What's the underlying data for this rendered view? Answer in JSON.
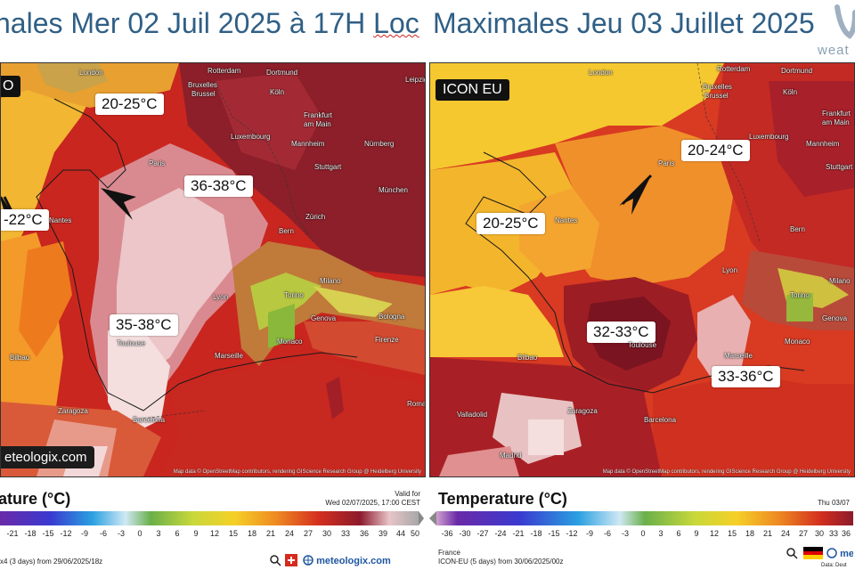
{
  "header": {
    "left_title_a": "nales  Mer 02 Juil 2025 à 17H ",
    "left_title_b": "Loc",
    "right_title": "Maximales Jeu 03 Juillet 2025",
    "logo_text": "weat"
  },
  "left_map": {
    "model_label": "O",
    "watermark": "eteologix.com",
    "credit": "Map data © OpenStreetMap contributors, rendering GIScience Research Group @ Heidelberg University",
    "labels": [
      "20-25°C",
      "36-38°C",
      "-22°C",
      "35-38°C"
    ],
    "cities": [
      "London",
      "Rotterdam",
      "Dortmund",
      "Leipzig",
      "Bruxelles",
      "Brussel",
      "Köln",
      "Frankfurt",
      "am Main",
      "Luxembourg",
      "Mannheim",
      "Nürnberg",
      "Paris",
      "Stuttgart",
      "München",
      "Zürich",
      "Bern",
      "Lyon",
      "Torino",
      "Milano",
      "Genova",
      "Bologna",
      "Monaco",
      "Firenze",
      "Marseille",
      "Toulouse",
      "Bilbao",
      "Zaragoza",
      "Barcelona",
      "Roma",
      "Nantes"
    ]
  },
  "right_map": {
    "model_label": "ICON EU",
    "credit": "Map data © OpenStreetMap contributors, rendering GIScience Research Group @ Heidelberg University",
    "labels": [
      "20-24°C",
      "20-25°C",
      "32-33°C",
      "33-36°C"
    ],
    "cities": [
      "London",
      "Rotterdam",
      "Dortmund",
      "Bruxelles",
      "Brussel",
      "Köln",
      "Frankfurt",
      "am Main",
      "Luxembourg",
      "Mannheim",
      "Paris",
      "Stuttgart",
      "Nantes",
      "Bern",
      "Lyon",
      "Torino",
      "Milano",
      "Genova",
      "Monaco",
      "Marseille",
      "Toulouse",
      "Bilbao",
      "Valladolid",
      "Zaragoza",
      "Barcelona",
      "Madrid"
    ]
  },
  "left_legend": {
    "title": "ature (°C)",
    "valid_label": "Valid for",
    "valid_value": "Wed 02/07/2025, 17:00 CEST",
    "ticks": [
      "-21",
      "-18",
      "-15",
      "-12",
      "-9",
      "-6",
      "-3",
      "0",
      "3",
      "6",
      "9",
      "12",
      "15",
      "18",
      "21",
      "24",
      "27",
      "30",
      "33",
      "36",
      "39",
      "44",
      "50"
    ],
    "run": "x4 (3 days) from 29/06/2025/18z",
    "brand": "meteologix.com"
  },
  "right_legend": {
    "title": "Temperature (°C)",
    "valid_value": "Thu 03/07",
    "ticks": [
      "-36",
      "-30",
      "-27",
      "-24",
      "-21",
      "-18",
      "-15",
      "-12",
      "-9",
      "-6",
      "-3",
      "0",
      "3",
      "6",
      "9",
      "12",
      "15",
      "18",
      "21",
      "24",
      "27",
      "30",
      "33",
      "36"
    ],
    "country": "France",
    "run": "ICON-EU (5 days) from 30/06/2025/00z",
    "brand": "me",
    "data_note": "Data: Deut"
  },
  "colors": {
    "title_blue": "#2f5f86",
    "sea_dark": "#b0201c",
    "hot_pink": "#f0c8c8",
    "yellow": "#f5c02a",
    "orange": "#ee7a1e"
  }
}
